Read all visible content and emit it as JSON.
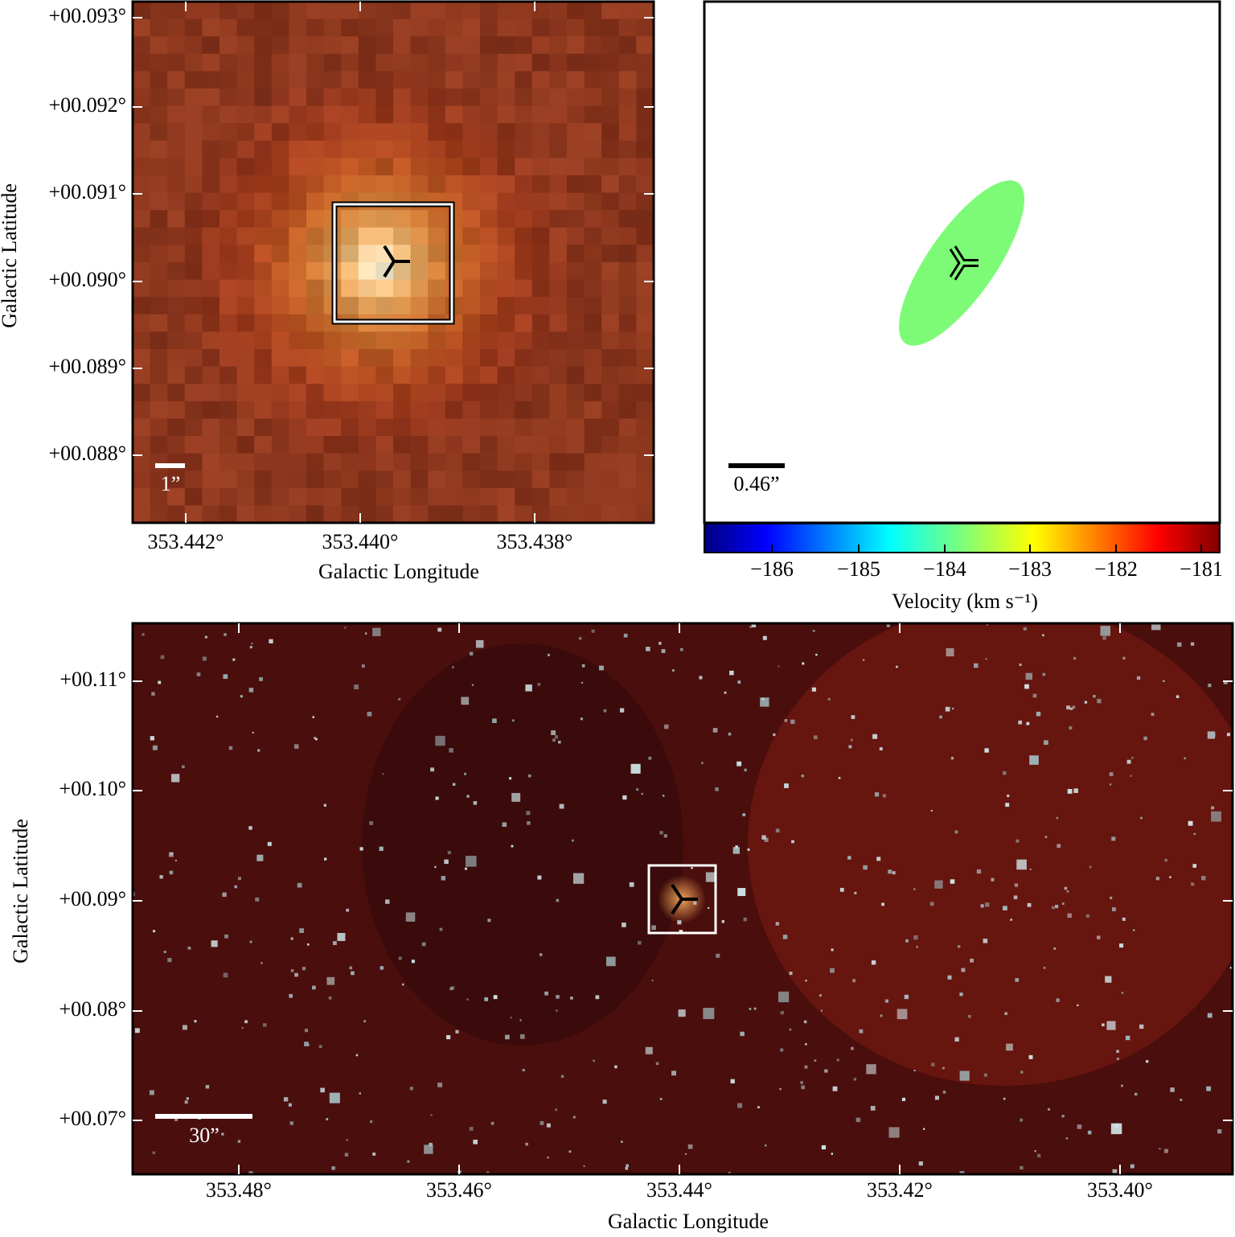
{
  "panels": [
    {
      "yaxis_label": "Galactic Latitude",
      "xaxis_label": "Galactic Longitude",
      "yticks": [
        "+00.093°",
        "+00.092°",
        "+00.091°",
        "+00.090°",
        "+00.089°",
        "+00.088°"
      ],
      "xticks": [
        "353.442°",
        "353.440°",
        "353.438°"
      ],
      "scale_bar": "1”"
    },
    {
      "scale_bar": "0.46”",
      "colorbar": {
        "label": "Velocity (km s⁻¹)",
        "ticks": [
          "−186",
          "−185",
          "−184",
          "−183",
          "−182",
          "−181"
        ]
      }
    },
    {
      "yaxis_label": "Galactic Latitude",
      "xaxis_label": "Galactic Longitude",
      "yticks": [
        "+00.11°",
        "+00.10°",
        "+00.09°",
        "+00.08°",
        "+00.07°"
      ],
      "xticks": [
        "353.48°",
        "353.46°",
        "353.44°",
        "353.42°",
        "353.40°"
      ],
      "scale_bar": "30”"
    }
  ]
}
